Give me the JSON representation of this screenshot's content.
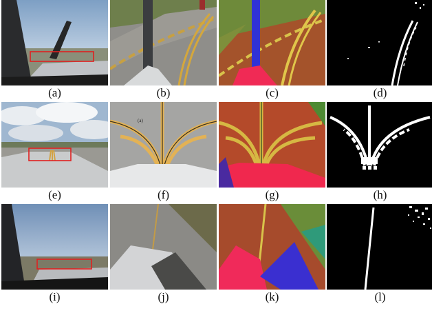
{
  "figure": {
    "captions": [
      "(a)",
      "(b)",
      "(c)",
      "(d)",
      "(e)",
      "(f)",
      "(g)",
      "(h)",
      "(i)",
      "(j)",
      "(k)",
      "(l)"
    ],
    "inset_label": "(a)"
  }
}
